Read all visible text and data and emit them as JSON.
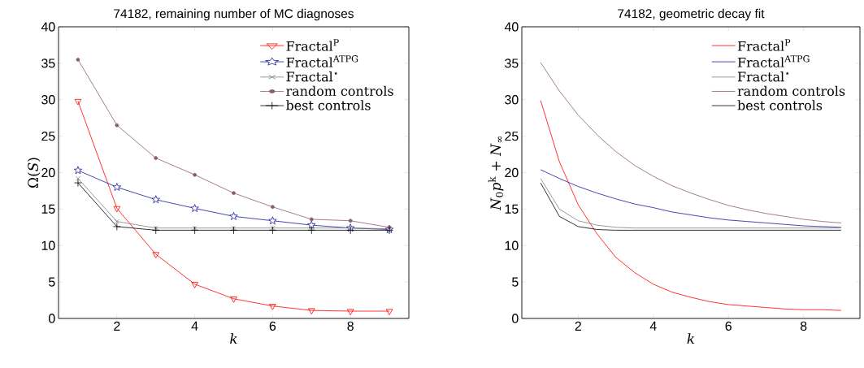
{
  "chart_data": [
    {
      "type": "line",
      "title": "74182, remaining number of MC diagnoses",
      "xlabel": "k",
      "ylabel": "Ω(*S*)",
      "x": [
        1,
        2,
        3,
        4,
        5,
        6,
        7,
        8,
        9
      ],
      "xlim": [
        0.5,
        9.5
      ],
      "ylim": [
        0,
        40
      ],
      "xticks": [
        2,
        4,
        6,
        8
      ],
      "yticks": [
        0,
        5,
        10,
        15,
        20,
        25,
        30,
        35,
        40
      ],
      "grid": false,
      "legend": "top right",
      "line_style": "solid",
      "series": [
        {
          "name": "Fractal$^{P}$",
          "color": "#ff0000",
          "marker": "triangle",
          "values": [
            29.8,
            15.1,
            8.8,
            4.7,
            2.7,
            1.7,
            1.1,
            1.0,
            1.0
          ]
        },
        {
          "name": "Fractal$^{ATPG}$",
          "color": "#1a1a9c",
          "marker": "star",
          "values": [
            20.3,
            18.0,
            16.3,
            15.1,
            14.0,
            13.4,
            12.8,
            12.4,
            12.2
          ]
        },
        {
          "name": "Fractal$^{⋆}$",
          "color": "#808080",
          "marker": "cross",
          "values": [
            19.2,
            13.3,
            12.4,
            12.4,
            12.4,
            12.4,
            12.4,
            12.4,
            12.3
          ]
        },
        {
          "name": "random controls",
          "color": "#8c5a7a",
          "marker": "circle",
          "values": [
            35.5,
            26.5,
            22.0,
            19.7,
            17.2,
            15.3,
            13.6,
            13.4,
            12.5
          ]
        },
        {
          "name": "best controls",
          "color": "#000000",
          "marker": "plus",
          "values": [
            18.6,
            12.6,
            12.1,
            12.1,
            12.1,
            12.1,
            12.1,
            12.1,
            12.1
          ]
        }
      ]
    },
    {
      "type": "line",
      "title": "74182, geometric decay fit",
      "xlabel": "k",
      "ylabel": "*N*$_{0}$*p*$^{k}$ + *N*$_{∞}$",
      "x": [
        1,
        1.5,
        2,
        2.5,
        3,
        3.5,
        4,
        4.5,
        5,
        5.5,
        6,
        6.5,
        7,
        7.5,
        8,
        8.5,
        9
      ],
      "xlim": [
        0.5,
        9.5
      ],
      "ylim": [
        0,
        40
      ],
      "xticks": [
        2,
        4,
        6,
        8
      ],
      "yticks": [
        0,
        5,
        10,
        15,
        20,
        25,
        30,
        35,
        40
      ],
      "grid": false,
      "legend": "top right",
      "line_style": "solid",
      "series": [
        {
          "name": "Fractal$^{P}$",
          "color": "#ff0000",
          "values": [
            29.9,
            21.5,
            15.6,
            11.6,
            8.4,
            6.3,
            4.7,
            3.6,
            2.9,
            2.3,
            1.9,
            1.7,
            1.5,
            1.3,
            1.2,
            1.2,
            1.1
          ]
        },
        {
          "name": "Fractal$^{ATPG}$",
          "color": "#1a1a9c",
          "values": [
            20.4,
            19.2,
            18.1,
            17.2,
            16.4,
            15.7,
            15.2,
            14.6,
            14.2,
            13.8,
            13.5,
            13.3,
            13.1,
            12.9,
            12.7,
            12.6,
            12.5
          ]
        },
        {
          "name": "Fractal$^{⋆}$",
          "color": "#808080",
          "values": [
            19.2,
            15.0,
            13.4,
            12.8,
            12.5,
            12.4,
            12.4,
            12.4,
            12.4,
            12.4,
            12.4,
            12.4,
            12.4,
            12.4,
            12.4,
            12.4,
            12.4
          ]
        },
        {
          "name": "random controls",
          "color": "#8c5a7a",
          "values": [
            35.1,
            31.2,
            27.9,
            25.2,
            22.9,
            21.0,
            19.5,
            18.2,
            17.2,
            16.3,
            15.5,
            14.9,
            14.4,
            14.0,
            13.6,
            13.3,
            13.1
          ]
        },
        {
          "name": "best controls",
          "color": "#000000",
          "values": [
            18.6,
            14.0,
            12.6,
            12.2,
            12.1,
            12.1,
            12.1,
            12.1,
            12.1,
            12.1,
            12.1,
            12.1,
            12.1,
            12.1,
            12.1,
            12.1,
            12.1
          ]
        }
      ]
    }
  ]
}
